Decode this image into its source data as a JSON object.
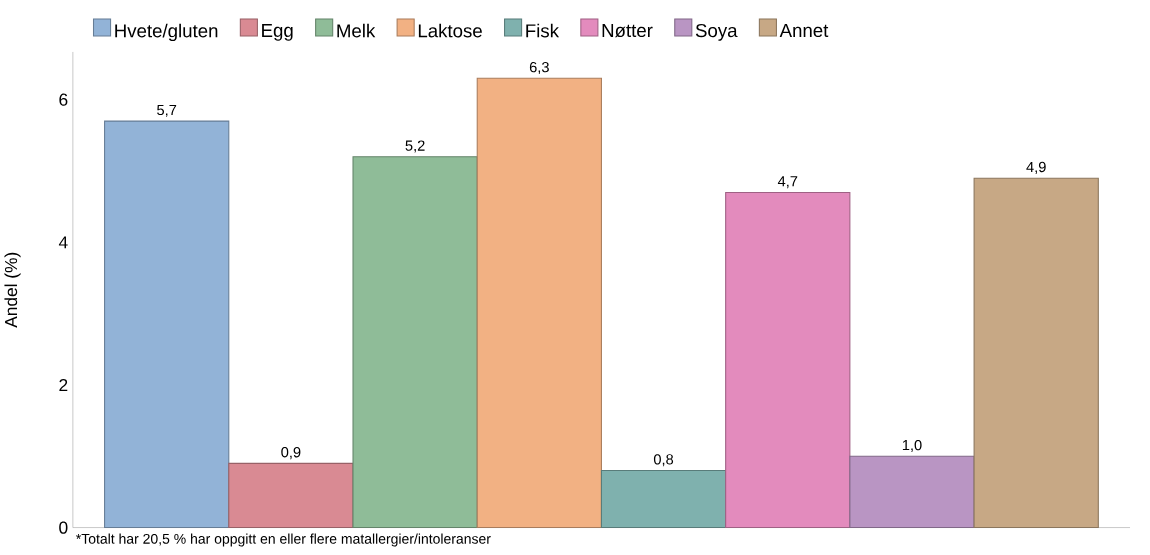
{
  "chart_data": {
    "type": "bar",
    "ylabel": "Andel (%)",
    "categories": [
      null
    ],
    "series": [
      {
        "name": "Hvete/gluten",
        "color": "#92b3d7",
        "values": [
          5.7
        ],
        "value_labels": [
          "5,7"
        ]
      },
      {
        "name": "Egg",
        "color": "#d98a93",
        "values": [
          0.9
        ],
        "value_labels": [
          "0,9"
        ]
      },
      {
        "name": "Melk",
        "color": "#8fbc98",
        "values": [
          5.2
        ],
        "value_labels": [
          "5,2"
        ]
      },
      {
        "name": "Laktose",
        "color": "#f2b183",
        "values": [
          6.3
        ],
        "value_labels": [
          "6,3"
        ]
      },
      {
        "name": "Fisk",
        "color": "#7fb1ae",
        "values": [
          0.8
        ],
        "value_labels": [
          "0,8"
        ]
      },
      {
        "name": "Nøtter",
        "color": "#e38bbd",
        "values": [
          4.7
        ],
        "value_labels": [
          "4,7"
        ]
      },
      {
        "name": "Soya",
        "color": "#b995c3",
        "values": [
          1.0
        ],
        "value_labels": [
          "1,0"
        ]
      },
      {
        "name": "Annet",
        "color": "#c7a885",
        "values": [
          4.9
        ],
        "value_labels": [
          "4,9"
        ]
      }
    ],
    "ylim": [
      0,
      6.67
    ],
    "yticks": [
      0,
      2,
      4,
      6
    ],
    "legend": "top",
    "grid": false,
    "annotations": [
      "*Totalt har 20,5 % har oppgitt en eller flere matallergier/intoleranser"
    ]
  }
}
